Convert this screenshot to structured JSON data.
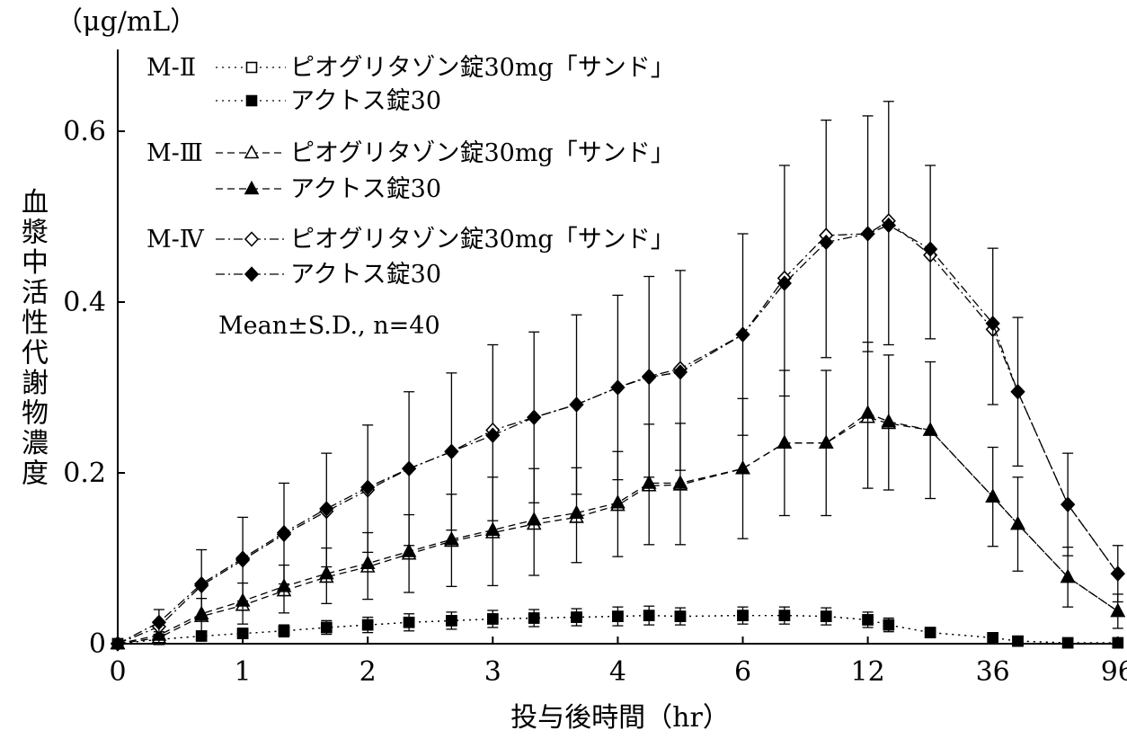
{
  "chart_data": {
    "type": "line",
    "title": "",
    "unit_label": "（μg/mL）",
    "ylabel": "血漿中活性代謝物濃度",
    "xlabel": "投与後時間（hr）",
    "ylim": [
      0,
      0.7
    ],
    "yticks": [
      {
        "value": 0,
        "label": "0"
      },
      {
        "value": 0.2,
        "label": "0.2"
      },
      {
        "value": 0.4,
        "label": "0.4"
      },
      {
        "value": 0.6,
        "label": "0.6"
      }
    ],
    "x": [
      0,
      0.33,
      0.67,
      1,
      1.33,
      1.67,
      2,
      2.33,
      2.67,
      3,
      3.33,
      3.67,
      4,
      4.5,
      5,
      6,
      8,
      10,
      12,
      16,
      24,
      36,
      48,
      72,
      96
    ],
    "xticks": [
      {
        "value": 0,
        "label": "0"
      },
      {
        "value": 1,
        "label": "1"
      },
      {
        "value": 2,
        "label": "2"
      },
      {
        "value": 3,
        "label": "3"
      },
      {
        "value": 4,
        "label": "4"
      },
      {
        "value": 6,
        "label": "6"
      },
      {
        "value": 12,
        "label": "12"
      },
      {
        "value": 36,
        "label": "36"
      },
      {
        "value": 96,
        "label": "96"
      }
    ],
    "legend_position": "top-left",
    "note": "Mean±S.D., n=40",
    "groups": [
      {
        "label": "M-Ⅱ",
        "line": "dotted"
      },
      {
        "label": "M-Ⅲ",
        "line": "dashed"
      },
      {
        "label": "M-Ⅳ",
        "line": "dashdot"
      }
    ],
    "series": [
      {
        "group": 0,
        "name": "ピオグリタゾン錠30mg「サンド」",
        "marker": "square",
        "filled": false,
        "values": [
          0,
          0.005,
          0.009,
          0.012,
          0.015,
          0.019,
          0.022,
          0.025,
          0.027,
          0.029,
          0.03,
          0.031,
          0.032,
          0.033,
          0.032,
          0.033,
          0.033,
          0.032,
          0.028,
          0.022,
          0.013,
          0.007,
          0.003,
          0.001,
          0.001
        ],
        "sd": [
          0,
          0.003,
          0.005,
          0.006,
          0.007,
          0.008,
          0.009,
          0.01,
          0.01,
          0.01,
          0.01,
          0.01,
          0.011,
          0.011,
          0.01,
          0.01,
          0.01,
          0.01,
          0.009,
          0.008,
          0.006,
          0.004,
          0.002,
          0.001,
          0.001
        ]
      },
      {
        "group": 0,
        "name": "アクトス錠30",
        "marker": "square",
        "filled": true,
        "values": [
          0,
          0.005,
          0.009,
          0.012,
          0.015,
          0.019,
          0.022,
          0.025,
          0.027,
          0.029,
          0.03,
          0.031,
          0.032,
          0.033,
          0.032,
          0.033,
          0.033,
          0.032,
          0.028,
          0.022,
          0.013,
          0.007,
          0.003,
          0.001,
          0.001
        ],
        "sd": [
          0,
          0.003,
          0.005,
          0.006,
          0.007,
          0.008,
          0.009,
          0.01,
          0.01,
          0.01,
          0.01,
          0.01,
          0.011,
          0.011,
          0.01,
          0.01,
          0.01,
          0.01,
          0.009,
          0.008,
          0.006,
          0.004,
          0.002,
          0.001,
          0.001
        ]
      },
      {
        "group": 1,
        "name": "ピオグリタゾン錠30mg「サンド」",
        "marker": "triangle",
        "filled": false,
        "values": [
          0,
          0.007,
          0.032,
          0.045,
          0.062,
          0.078,
          0.09,
          0.105,
          0.12,
          0.13,
          0.14,
          0.148,
          0.162,
          0.185,
          0.186,
          0.205,
          0.235,
          0.235,
          0.265,
          0.258,
          0.25,
          0.172,
          0.14,
          0.078,
          0.038
        ],
        "sd": [
          0,
          0.007,
          0.021,
          0.026,
          0.03,
          0.034,
          0.04,
          0.046,
          0.055,
          0.065,
          0.065,
          0.058,
          0.063,
          0.072,
          0.072,
          0.082,
          0.085,
          0.085,
          0.088,
          0.08,
          0.08,
          0.058,
          0.055,
          0.035,
          0.02
        ]
      },
      {
        "group": 1,
        "name": "アクトス錠30",
        "marker": "triangle",
        "filled": true,
        "values": [
          0,
          0.01,
          0.035,
          0.05,
          0.067,
          0.082,
          0.094,
          0.108,
          0.122,
          0.133,
          0.145,
          0.153,
          0.165,
          0.188,
          0.188,
          0.205,
          0.235,
          0.235,
          0.27,
          0.26,
          0.25,
          0.172,
          0.14,
          0.078,
          0.038
        ],
        "sd": [
          0,
          0.01,
          0.023,
          0.027,
          0.031,
          0.035,
          0.042,
          0.048,
          0.055,
          0.065,
          0.065,
          0.058,
          0.063,
          0.072,
          0.072,
          0.082,
          0.085,
          0.085,
          0.088,
          0.08,
          0.08,
          0.058,
          0.055,
          0.035,
          0.02
        ]
      },
      {
        "group": 2,
        "name": "ピオグリタゾン錠30mg「サンド」",
        "marker": "diamond",
        "filled": false,
        "values": [
          0,
          0.02,
          0.068,
          0.098,
          0.128,
          0.155,
          0.18,
          0.205,
          0.225,
          0.25,
          0.265,
          0.28,
          0.3,
          0.313,
          0.322,
          0.362,
          0.428,
          0.478,
          0.48,
          0.495,
          0.455,
          0.368,
          0.295,
          0.163,
          0.082
        ],
        "sd": [
          0,
          0.02,
          0.042,
          0.05,
          0.06,
          0.068,
          0.076,
          0.09,
          0.092,
          0.1,
          0.1,
          0.105,
          0.108,
          0.117,
          0.115,
          0.118,
          0.132,
          0.135,
          0.138,
          0.14,
          0.105,
          0.095,
          0.087,
          0.06,
          0.033
        ]
      },
      {
        "group": 2,
        "name": "アクトス錠30",
        "marker": "diamond",
        "filled": true,
        "values": [
          0,
          0.025,
          0.07,
          0.1,
          0.13,
          0.158,
          0.183,
          0.205,
          0.225,
          0.244,
          0.265,
          0.28,
          0.3,
          0.312,
          0.318,
          0.362,
          0.422,
          0.47,
          0.48,
          0.49,
          0.462,
          0.375,
          0.295,
          0.163,
          0.082
        ],
        "sd": [
          0,
          0.02,
          0.042,
          0.05,
          0.06,
          0.068,
          0.076,
          0.09,
          0.092,
          0.1,
          0.1,
          0.105,
          0.108,
          0.117,
          0.115,
          0.118,
          0.132,
          0.135,
          0.138,
          0.14,
          0.105,
          0.095,
          0.087,
          0.06,
          0.033
        ]
      }
    ]
  }
}
